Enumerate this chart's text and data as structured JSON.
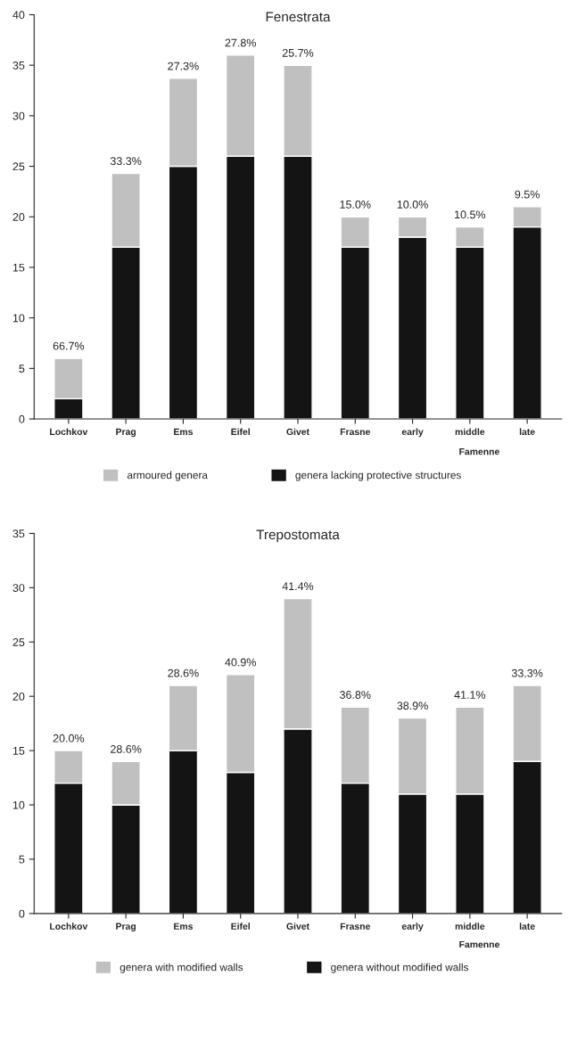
{
  "chart_data": [
    {
      "type": "bar",
      "title": "Fenestrata",
      "stacked": true,
      "categories": [
        "Lochkov",
        "Prag",
        "Ems",
        "Eifel",
        "Givet",
        "Frasne",
        "early",
        "middle",
        "late"
      ],
      "series": [
        {
          "name": "genera lacking protective structures",
          "color": "#141414",
          "values": [
            2,
            17,
            25,
            26,
            26,
            17,
            18,
            17,
            19
          ]
        },
        {
          "name": "armoured genera",
          "color": "#c0c0c0",
          "values": [
            4,
            7.3,
            8.7,
            10,
            9,
            3,
            2,
            2,
            2
          ]
        }
      ],
      "ylim": [
        0,
        40
      ],
      "yticks": [
        0,
        5,
        10,
        15,
        20,
        25,
        30,
        35,
        40
      ],
      "legend": "bottom",
      "grid": false,
      "annotations": [
        {
          "text": "66.7%",
          "x": "Lochkov",
          "y": 6
        },
        {
          "text": "33.3%",
          "x": "Prag",
          "y": 24.3
        },
        {
          "text": "27.3%",
          "x": "Ems",
          "y": 33.7
        },
        {
          "text": "27.8%",
          "x": "Eifel",
          "y": 36
        },
        {
          "text": "25.7%",
          "x": "Givet",
          "y": 35
        },
        {
          "text": "15.0%",
          "x": "Frasne",
          "y": 20
        },
        {
          "text": "10.0%",
          "x": "early",
          "y": 20
        },
        {
          "text": "10.5%",
          "x": "middle",
          "y": 19
        },
        {
          "text": "9.5%",
          "x": "late",
          "y": 21
        },
        "Famenne"
      ]
    },
    {
      "type": "bar",
      "title": "Trepostomata",
      "stacked": true,
      "categories": [
        "Lochkov",
        "Prag",
        "Ems",
        "Eifel",
        "Givet",
        "Frasne",
        "early",
        "middle",
        "late"
      ],
      "series": [
        {
          "name": "genera without modified walls",
          "color": "#141414",
          "values": [
            12,
            10,
            15,
            13,
            17,
            12,
            11,
            11,
            14
          ]
        },
        {
          "name": "genera with modified walls",
          "color": "#c0c0c0",
          "values": [
            3,
            4,
            6,
            9,
            12,
            7,
            7,
            8,
            7
          ]
        }
      ],
      "ylim": [
        0,
        35
      ],
      "yticks": [
        0,
        5,
        10,
        15,
        20,
        25,
        30,
        35
      ],
      "legend": "bottom",
      "grid": false,
      "annotations": [
        {
          "text": "20.0%",
          "x": "Lochkov",
          "y": 15
        },
        {
          "text": "28.6%",
          "x": "Prag",
          "y": 14
        },
        {
          "text": "28.6%",
          "x": "Ems",
          "y": 21
        },
        {
          "text": "40.9%",
          "x": "Eifel",
          "y": 22
        },
        {
          "text": "41.4%",
          "x": "Givet",
          "y": 29
        },
        {
          "text": "36.8%",
          "x": "Frasne",
          "y": 19
        },
        {
          "text": "38.9%",
          "x": "early",
          "y": 18
        },
        {
          "text": "41.1%",
          "x": "middle",
          "y": 19
        },
        {
          "text": "33.3%",
          "x": "late",
          "y": 21
        },
        "Famenne"
      ]
    }
  ]
}
